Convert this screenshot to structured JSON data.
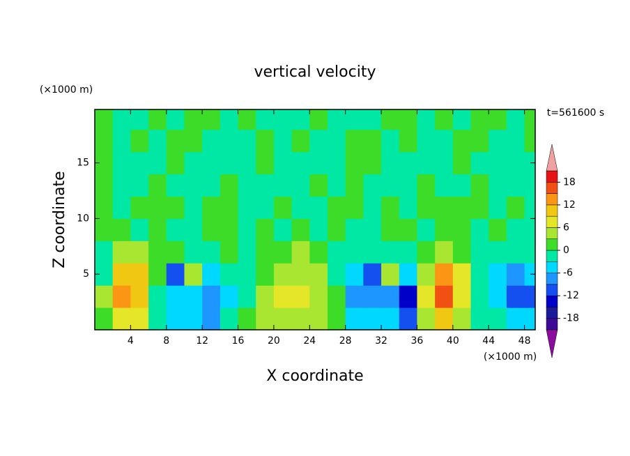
{
  "chart_data": {
    "type": "contourf",
    "title": "vertical velocity",
    "xlabel": "X coordinate",
    "ylabel": "Z coordinate",
    "x_unit": "(×1000 m)",
    "y_unit": "(×1000 m)",
    "annotation": "t=561600 s",
    "xlim": [
      0,
      49.2
    ],
    "ylim": [
      0,
      19.8
    ],
    "xticks": [
      4,
      8,
      12,
      16,
      20,
      24,
      28,
      32,
      36,
      40,
      44,
      48
    ],
    "yticks": [
      5,
      10,
      15
    ],
    "x_edges": [
      0,
      2,
      4,
      6,
      8,
      10,
      12,
      14,
      16,
      18,
      20,
      22,
      24,
      26,
      28,
      30,
      32,
      34,
      36,
      38,
      40,
      42,
      44,
      46,
      48,
      50
    ],
    "z_edges": [
      0,
      2,
      4,
      6,
      8,
      10,
      12,
      14,
      16,
      18,
      20
    ],
    "z": [
      [
        2,
        8,
        6,
        -2,
        -4,
        -5,
        -8,
        -3,
        2,
        4,
        5,
        5,
        3,
        1,
        -5,
        -4,
        -6,
        -10,
        4,
        10,
        5,
        -2,
        -3,
        -6,
        -4
      ],
      [
        3,
        13,
        11,
        -1,
        -5,
        -6,
        -9,
        -4,
        -3,
        4,
        7,
        8,
        4,
        0,
        -7,
        -8,
        -7,
        -13,
        6,
        16,
        8,
        -3,
        -4,
        -12,
        -10
      ],
      [
        -3,
        10,
        9,
        2,
        -10,
        4,
        -4,
        -3,
        -2,
        2,
        4,
        5,
        3,
        -1,
        -5,
        -11,
        4,
        -5,
        5,
        13,
        6,
        -2,
        -4,
        -8,
        -5
      ],
      [
        -1,
        3,
        4,
        1,
        1,
        -1,
        -2,
        1,
        -1,
        1,
        1,
        3,
        1,
        -1,
        -3,
        -2,
        -1,
        -2,
        1,
        3,
        2,
        -1,
        -1,
        -1,
        -1
      ],
      [
        1,
        1,
        -1,
        1,
        -1,
        -1,
        1,
        1,
        -1,
        1,
        -1,
        1,
        -1,
        1,
        -2,
        -1,
        1,
        1,
        -1,
        1,
        1,
        -1,
        1,
        -1,
        -1
      ],
      [
        1,
        -1,
        1,
        1,
        1,
        -1,
        1,
        1,
        -1,
        -1,
        1,
        -1,
        -1,
        1,
        1,
        -1,
        1,
        -1,
        1,
        1,
        1,
        1,
        -1,
        1,
        -1
      ],
      [
        1,
        -1,
        -1,
        1,
        -1,
        -1,
        -1,
        1,
        -1,
        -1,
        -1,
        -1,
        1,
        -1,
        1,
        -1,
        -1,
        -1,
        1,
        -1,
        -1,
        1,
        -1,
        -1,
        -1
      ],
      [
        1,
        -1,
        -1,
        -1,
        1,
        -1,
        -1,
        -1,
        -1,
        1,
        -1,
        -1,
        -1,
        -1,
        1,
        1,
        -1,
        -1,
        -1,
        -1,
        1,
        -1,
        -1,
        -1,
        -1
      ],
      [
        1,
        -1,
        1,
        -1,
        1,
        1,
        -1,
        -1,
        -1,
        1,
        -1,
        1,
        -1,
        -1,
        1,
        1,
        -1,
        1,
        -1,
        -1,
        1,
        1,
        -1,
        -1,
        1
      ],
      [
        1,
        -1,
        -1,
        1,
        -1,
        1,
        1,
        -1,
        1,
        -1,
        -1,
        -1,
        1,
        -1,
        -1,
        -1,
        1,
        1,
        -1,
        1,
        -1,
        1,
        1,
        -1,
        1
      ]
    ],
    "levels": [
      -21,
      -18,
      -15,
      -12,
      -9,
      -6,
      -3,
      0,
      3,
      6,
      9,
      12,
      15,
      18,
      21
    ],
    "colors": [
      "#3c0a96",
      "#1a1a9a",
      "#0000c8",
      "#1450f0",
      "#1e96ff",
      "#00d8ff",
      "#00e8a4",
      "#3cdc28",
      "#a8e632",
      "#e6e628",
      "#f0c814",
      "#fa9614",
      "#f05014",
      "#e61414"
    ],
    "under_color": "#8c0ca0",
    "over_color": "#f0a0a0",
    "colorbar_ticks": [
      -18,
      -12,
      -6,
      0,
      6,
      12,
      18
    ]
  }
}
